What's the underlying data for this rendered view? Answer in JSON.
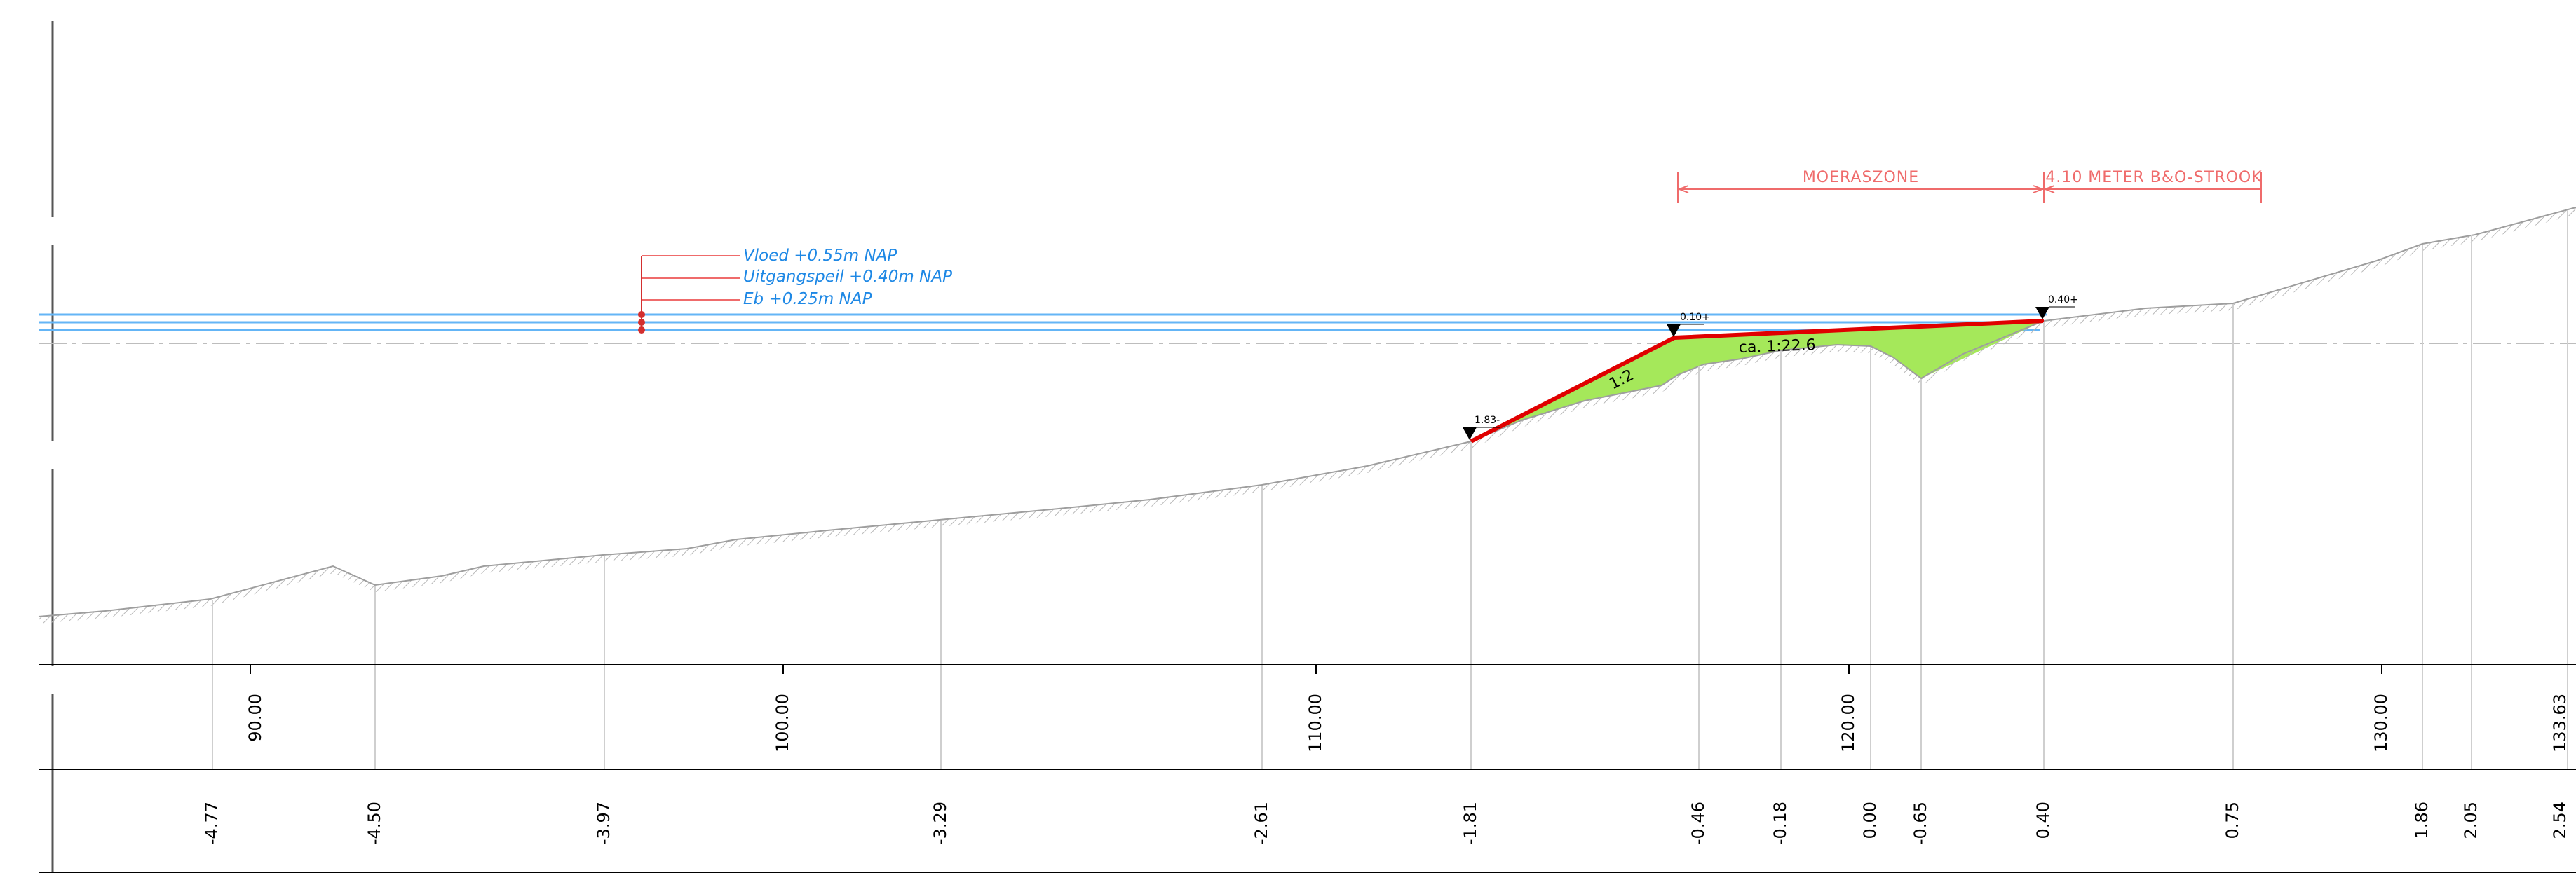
{
  "water_levels": {
    "vloed": "Vloed +0.55m NAP",
    "uitgangspeil": "Uitgangspeil +0.40m NAP",
    "eb": "Eb +0.25m NAP"
  },
  "zones": {
    "moeraszone": "MOERASZONE",
    "strook": "4.10 METER B&O-STROOK"
  },
  "point_labels": {
    "left_toe": "1.83-",
    "crest_left": "0.10+",
    "crest_right": "0.40+"
  },
  "slopes": {
    "steep": "1:2",
    "gentle": "ca. 1:22.6"
  },
  "distance_labels": [
    "90.00",
    "100.00",
    "110.00",
    "120.00",
    "130.00",
    "133.63"
  ],
  "height_labels": [
    "-4.77",
    "-4.50",
    "-3.97",
    "-3.29",
    "-2.61",
    "-1.81",
    "-0.46",
    "-0.18",
    "0.00",
    "-0.65",
    "0.40",
    "0.75",
    "1.86",
    "2.05",
    "2.54"
  ],
  "colors": {
    "ground_line": "#9e9e9e",
    "water_line": "#64b5f6",
    "design_line": "#e00000",
    "fill": "#a5e85a",
    "zone_dimension": "#ef6b6b",
    "marker": "#d32f2f"
  }
}
